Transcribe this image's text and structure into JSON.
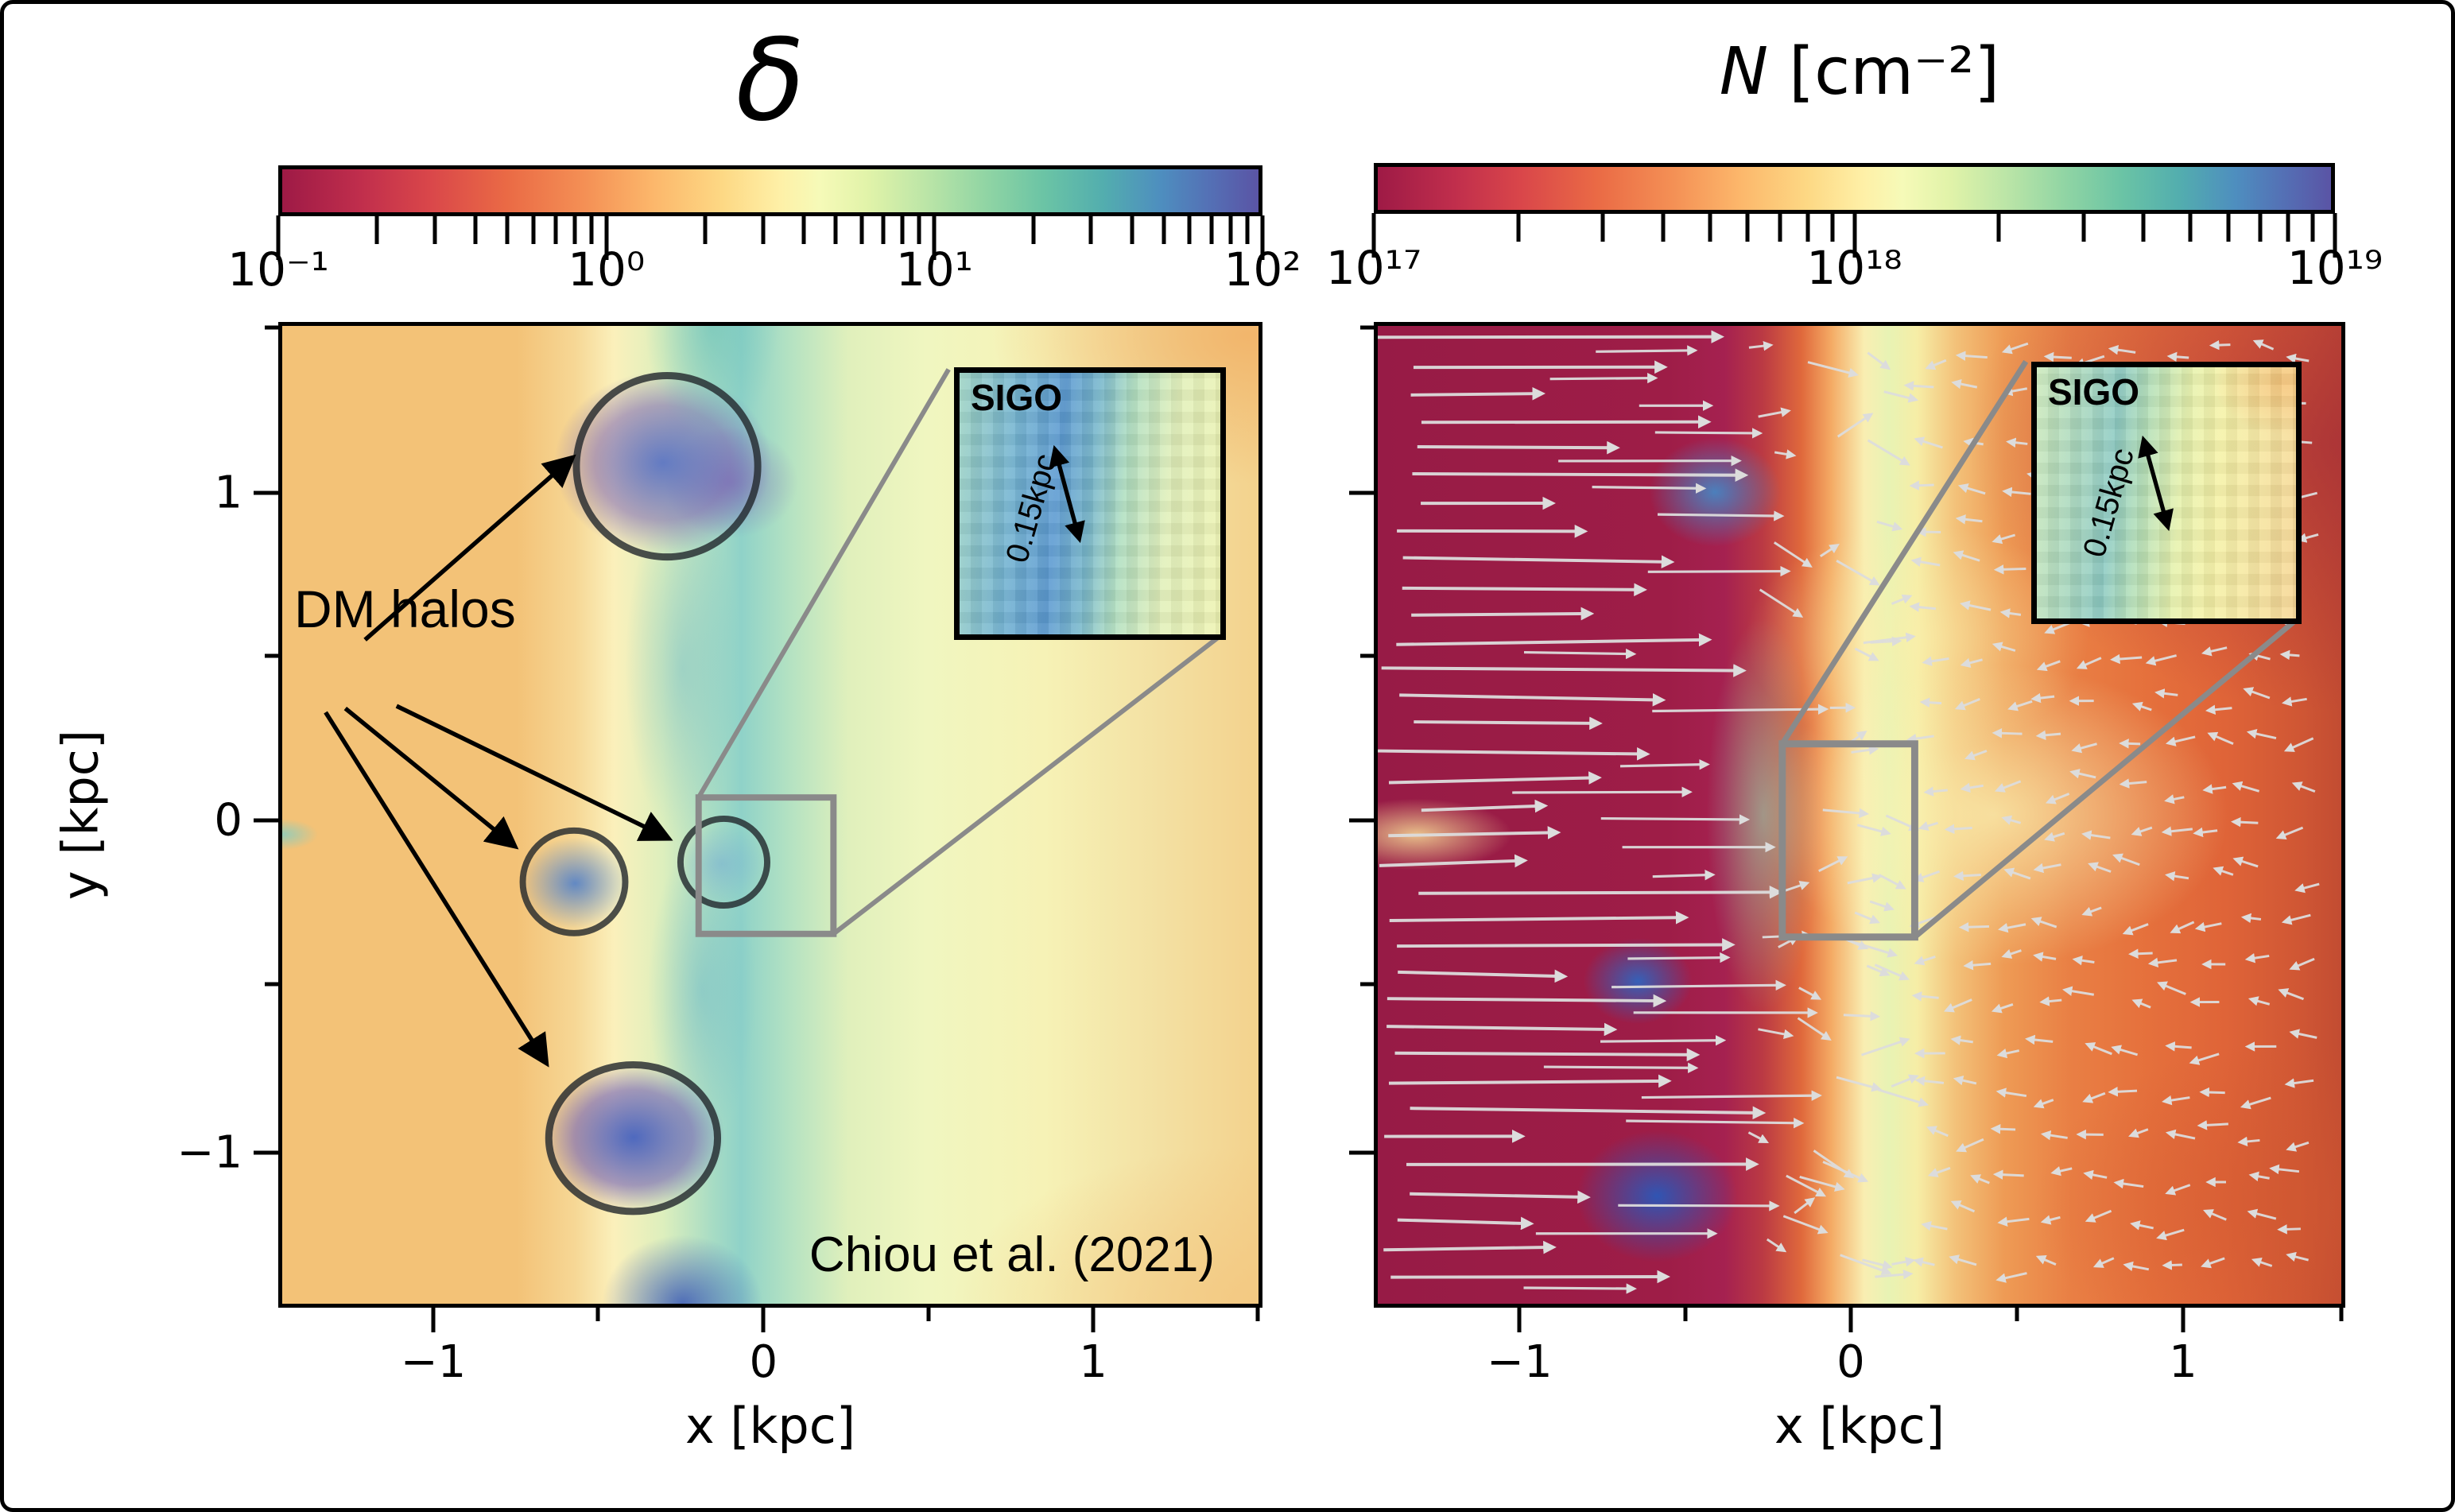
{
  "left_panel": {
    "title": "δ",
    "colorbar_ticks": [
      "10⁻¹",
      "10⁰",
      "10¹",
      "10²"
    ],
    "x_label": "x [kpc]",
    "y_label": "y [kpc]",
    "x_tick_labels": [
      "−1",
      "0",
      "1"
    ],
    "y_tick_labels": [
      "1",
      "0",
      "−1"
    ],
    "dm_halos_label": "DM halos",
    "inset": {
      "label": "SIGO",
      "scale": "0.15kpc"
    },
    "credit": "Chiou et al. (2021)"
  },
  "right_panel": {
    "title_var": "N",
    "title_unit": " [cm⁻²]",
    "colorbar_ticks": [
      "10¹⁷",
      "10¹⁸",
      "10¹⁹"
    ],
    "x_label": "x [kpc]",
    "x_tick_labels": [
      "−1",
      "0",
      "1"
    ],
    "inset": {
      "label": "SIGO",
      "scale": "0.15kpc"
    }
  },
  "chart_data": [
    {
      "type": "heatmap",
      "title": "δ (baryon overdensity, log color scale)",
      "colormap": "Spectral_r",
      "color_scale": "log",
      "value_range": [
        0.1,
        100
      ],
      "colorbar_tick_labels": [
        "10^-1",
        "10^0",
        "10^1",
        "10^2"
      ],
      "xlabel": "x [kpc]",
      "ylabel": "y [kpc]",
      "xlim": [
        -1.5,
        1.5
      ],
      "ylim": [
        -1.55,
        1.45
      ],
      "xticks": [
        -1,
        0,
        1
      ],
      "yticks": [
        1,
        0,
        -1
      ],
      "grid": false,
      "features": {
        "filament": "vertical overdense gas filament (δ ≈ 10–60, teal/blue) running top to bottom near x ≈ −0.3 kpc",
        "background": "underdense void region δ ≈ 0.3–0.6 (orange) for x ≲ −0.7 kpc; δ ≈ 1–3 (pale yellow) elsewhere",
        "dm_halo_circles": [
          {
            "x": -0.3,
            "y": 1.19,
            "r": 0.29,
            "note": "largest halo, δ ≈ 40–80 core"
          },
          {
            "x": -0.58,
            "y": -0.17,
            "r": 0.16
          },
          {
            "x": -0.12,
            "y": -0.11,
            "r": 0.13
          },
          {
            "x": -0.4,
            "y": -0.99,
            "rx": 0.25,
            "ry": 0.22,
            "note": "large halo, δ ≈ 50–100 core"
          }
        ],
        "sigo_zoom_box": {
          "x": [
            -0.17,
            0.25
          ],
          "y": [
            -0.44,
            -0.02
          ],
          "note": "gray box magnified into SIGO inset, inset width 0.15 kpc scale"
        }
      },
      "annotations": [
        "DM halos (4 arrows to circled halos)",
        "SIGO",
        "0.15kpc",
        "Chiou et al. (2021)"
      ]
    },
    {
      "type": "heatmap",
      "title": "N [cm^-2] (gas column density, log color scale) with gas velocity quiver overlay",
      "colormap": "Spectral_r",
      "color_scale": "log",
      "value_range": [
        1e+17,
        1e+19
      ],
      "colorbar_tick_labels": [
        "10^17",
        "10^18",
        "10^19"
      ],
      "xlabel": "x [kpc]",
      "ylabel": "",
      "xlim": [
        -1.45,
        1.55
      ],
      "ylim": [
        -1.55,
        1.45
      ],
      "xticks": [
        -1,
        0,
        1
      ],
      "yticks": [
        1,
        0,
        -1
      ],
      "grid": false,
      "features": {
        "void": "N ≈ 10^17 cm^-2 (dark crimson) for x ≲ −0.6 kpc",
        "filament": "N ≈ 10^18–10^18.5 cm^-2 (pale green/teal) vertical filament near x ≈ −0.25 kpc with N ≳ 10^18.8 blue knots at y ≈ 0.9, −0.3, −1.1",
        "right_side": "N ≈ 10^17.5–10^18 cm^-2 (orange) for x ≳ 0.3 kpc",
        "velocity_field": "long rightward arrows flowing from the left void into the filament; short leftward/convergent arrows on the right side fanning toward the filament",
        "sigo_zoom_box": {
          "x": [
            -0.21,
            0.2
          ],
          "y": [
            -0.38,
            0.21
          ],
          "note": "gray box magnified into SIGO inset"
        }
      },
      "annotations": [
        "SIGO",
        "0.15kpc"
      ]
    }
  ]
}
